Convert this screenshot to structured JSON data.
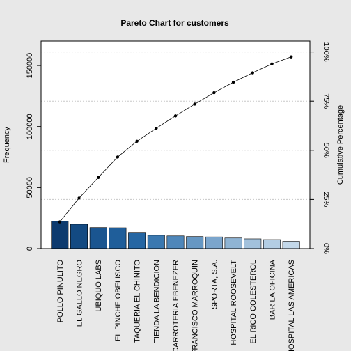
{
  "chart_data": {
    "type": "bar",
    "title": "Pareto Chart for customers",
    "xlabel": "",
    "ylabel": "Frequency",
    "ylabel_right": "Cumulative Percentage",
    "categories": [
      "POLLO PINULITO",
      "EL GALLO NEGRO",
      "UBIQUO LABS",
      "EL PINCHE OBELISCO",
      "TAQUERIA EL CHINITO",
      "TIENDA LA BENDICION",
      "CARROTERIA EBENEZER",
      "FRANCISCO MARROQUIN",
      "SPORTA, S.A.",
      "HOSPITAL ROOSEVELT",
      "EL RICO COLESTEROL",
      "BAR LA OFICINA",
      "HOSPITAL LAS AMERICAS"
    ],
    "values": [
      22500,
      20000,
      17300,
      17100,
      13300,
      10900,
      10400,
      9900,
      9600,
      8700,
      8000,
      7400,
      6000
    ],
    "cumulative_percent": [
      13.6,
      25.7,
      36.2,
      46.6,
      54.6,
      61.2,
      67.5,
      73.5,
      79.3,
      84.6,
      89.4,
      93.9,
      97.5
    ],
    "ylim": [
      0,
      170000
    ],
    "y_ticks": [
      0,
      50000,
      100000,
      150000
    ],
    "y_tick_labels": [
      "0",
      "50000",
      "100000",
      "150000"
    ],
    "right_ticks": [
      0,
      25,
      50,
      75,
      100
    ],
    "right_tick_labels": [
      "0%",
      "25%",
      "50%",
      "75%",
      "100%"
    ],
    "bar_colors": [
      "#0d3a6e",
      "#134a82",
      "#1a5590",
      "#1f5e9a",
      "#2566a3",
      "#3a78b0",
      "#4f87ba",
      "#6697c3",
      "#7ba5cc",
      "#8fb4d4",
      "#a2c1dc",
      "#b3cde3",
      "#c3d8ea"
    ],
    "line_color": "#000000",
    "grid": true
  }
}
